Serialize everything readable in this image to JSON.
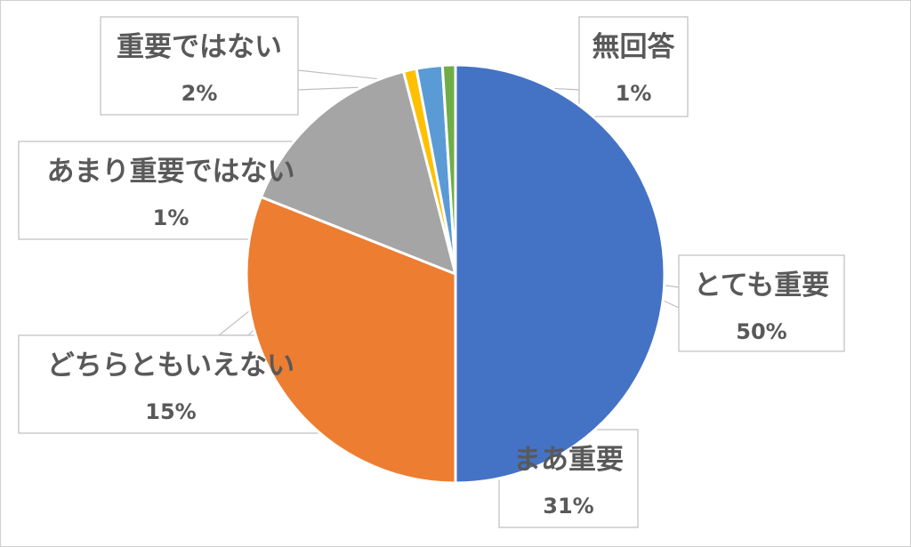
{
  "chart_data": {
    "type": "pie",
    "title": "",
    "colors": {
      "とても重要": "#4472C4",
      "まあ重要": "#ED7D31",
      "どちらともいえない": "#A5A5A5",
      "あまり重要ではない": "#FFC000",
      "重要ではない": "#5B9BD5",
      "無回答": "#70AD47"
    },
    "slices": [
      {
        "label": "とても重要",
        "value": 50,
        "value_label": "50%"
      },
      {
        "label": "まあ重要",
        "value": 31,
        "value_label": "31%"
      },
      {
        "label": "どちらともいえない",
        "value": 15,
        "value_label": "15%"
      },
      {
        "label": "あまり重要ではない",
        "value": 1,
        "value_label": "1%"
      },
      {
        "label": "重要ではない",
        "value": 2,
        "value_label": "2%"
      },
      {
        "label": "無回答",
        "value": 1,
        "value_label": "1%"
      }
    ],
    "start_angle": "12 o'clock",
    "direction": "clockwise",
    "legend": "none"
  }
}
